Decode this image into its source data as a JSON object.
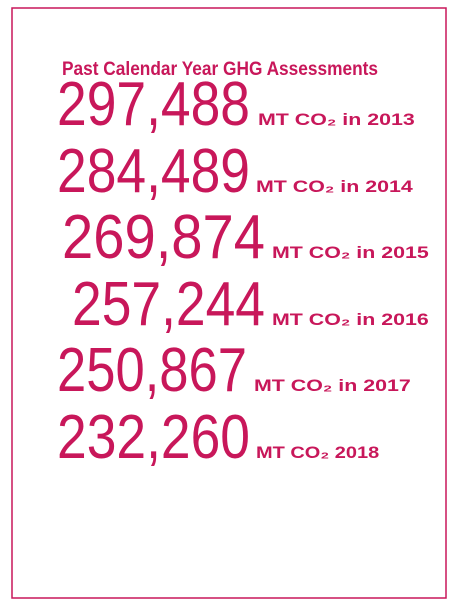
{
  "title": "Past Calendar Year GHG Assessments",
  "items": [
    {
      "number": "297,488",
      "label": "MT CO₂ in 2013"
    },
    {
      "number": "284,489",
      "label": "MT CO₂ in 2014"
    },
    {
      "number": "269,874",
      "label": "MT CO₂ in 2015"
    },
    {
      "number": "257,244",
      "label": "MT CO₂ in 2016"
    },
    {
      "number": "250,867",
      "label": "MT CO₂ in 2017"
    },
    {
      "number": "232,260",
      "label": "MT CO₂ 2018"
    }
  ]
}
